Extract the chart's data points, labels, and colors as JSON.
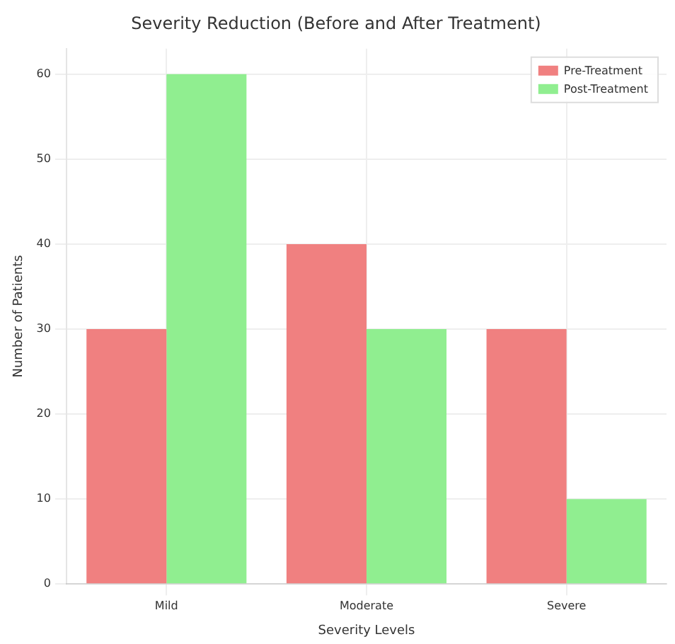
{
  "chart_data": {
    "type": "bar",
    "title": "Severity Reduction (Before and After Treatment)",
    "xlabel": "Severity Levels",
    "ylabel": "Number of Patients",
    "categories": [
      "Mild",
      "Moderate",
      "Severe"
    ],
    "series": [
      {
        "name": "Pre-Treatment",
        "color": "#f08080",
        "values": [
          30,
          40,
          30
        ]
      },
      {
        "name": "Post-Treatment",
        "color": "#90ee90",
        "values": [
          60,
          30,
          10
        ]
      }
    ],
    "ylim": [
      0,
      63
    ],
    "yticks": [
      0,
      10,
      20,
      30,
      40,
      50,
      60
    ],
    "grid": true,
    "legend": "top right"
  }
}
